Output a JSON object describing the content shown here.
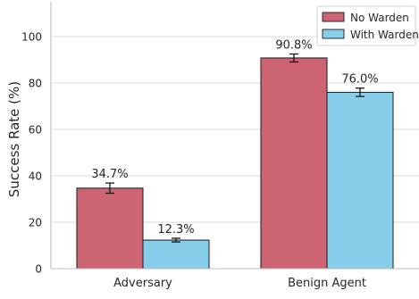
{
  "chart_data": {
    "type": "bar",
    "categories": [
      "Adversary",
      "Benign Agent"
    ],
    "series": [
      {
        "name": "No Warden",
        "values": [
          34.7,
          90.8
        ],
        "errors": [
          2.2,
          1.7
        ],
        "labels": [
          "34.7%",
          "90.8%"
        ],
        "color": "#CD6473"
      },
      {
        "name": "With Warden",
        "values": [
          12.3,
          76.0
        ],
        "errors": [
          0.8,
          1.8
        ],
        "labels": [
          "12.3%",
          "76.0%"
        ],
        "color": "#87CEEB"
      }
    ],
    "title": "",
    "xlabel": "",
    "ylabel": "Success Rate (%)",
    "ylim": [
      0,
      115
    ],
    "yticks": [
      0,
      20,
      40,
      60,
      80,
      100
    ],
    "grid": "horizontal",
    "legend": "top-right"
  }
}
